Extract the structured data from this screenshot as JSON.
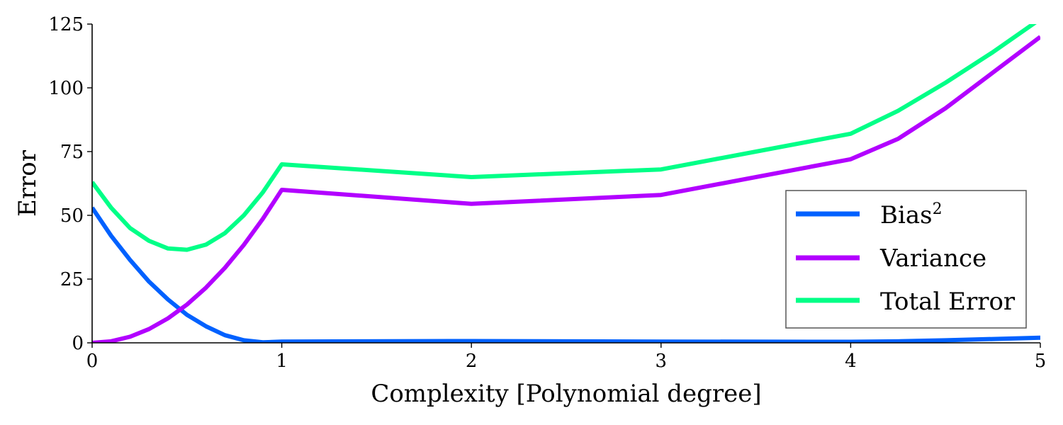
{
  "chart_data": {
    "type": "line",
    "title": "",
    "xlabel": "Complexity [Polynomial degree]",
    "ylabel": "Error",
    "xlim": [
      0,
      5
    ],
    "ylim": [
      0,
      125
    ],
    "xticks": [
      0,
      1,
      2,
      3,
      4,
      5
    ],
    "yticks": [
      0,
      25,
      50,
      75,
      100,
      125
    ],
    "grid": false,
    "legend_position": "lower-right",
    "series": [
      {
        "name": "Bias",
        "superscript": "2",
        "color": "#0061ff",
        "x": [
          0,
          0.1,
          0.2,
          0.3,
          0.4,
          0.5,
          0.6,
          0.7,
          0.8,
          0.9,
          1,
          2,
          3,
          4,
          4.25,
          4.5,
          4.75,
          5
        ],
        "y": [
          53,
          42,
          32.5,
          24,
          17,
          11,
          6.5,
          3,
          1,
          0.2,
          0.5,
          0.7,
          0.5,
          0.4,
          0.6,
          1.0,
          1.5,
          2.0
        ]
      },
      {
        "name": "Variance",
        "color": "#b200ff",
        "x": [
          0,
          0.1,
          0.2,
          0.3,
          0.4,
          0.5,
          0.6,
          0.7,
          0.8,
          0.9,
          1,
          2,
          3,
          4,
          4.25,
          4.5,
          4.75,
          5
        ],
        "y": [
          0,
          0.6,
          2.4,
          5.4,
          9.6,
          15,
          21.6,
          29.4,
          38.4,
          48.6,
          60,
          54.5,
          58,
          72,
          80,
          92,
          106,
          120
        ]
      },
      {
        "name": "Total Error",
        "color": "#00ff87",
        "x": [
          0,
          0.1,
          0.2,
          0.3,
          0.4,
          0.5,
          0.6,
          0.7,
          0.8,
          0.9,
          1,
          2,
          3,
          4,
          4.25,
          4.5,
          4.75,
          5
        ],
        "y": [
          63,
          53,
          45,
          40,
          37,
          36.5,
          38.5,
          43,
          50,
          59,
          70,
          65,
          68,
          82,
          91,
          102,
          114,
          127
        ]
      }
    ]
  }
}
